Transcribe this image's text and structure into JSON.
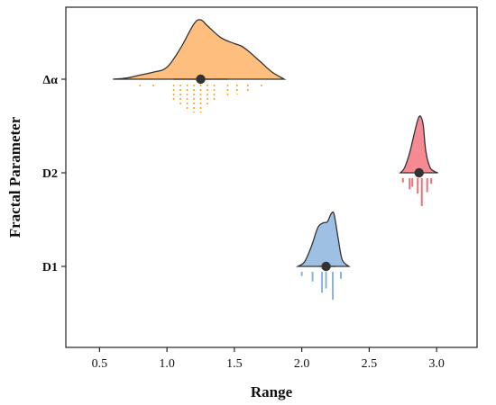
{
  "chart_data": {
    "type": "raincloud",
    "xlabel": "Range",
    "ylabel": "Fractal Parameter",
    "xlim": [
      0.25,
      3.3
    ],
    "x_ticks": [
      0.5,
      1.0,
      1.5,
      2.0,
      2.5,
      3.0
    ],
    "x_tick_labels": [
      "0.5",
      "1.0",
      "1.5",
      "2.0",
      "2.5",
      "3.0"
    ],
    "grid": false,
    "legend": "none",
    "categories": [
      "Δα",
      "D2",
      "D1"
    ],
    "series": [
      {
        "category": "Δα",
        "color": "#FDBE7E",
        "rug_color": "#F5A623",
        "mean": 1.25,
        "interval": [
          1.05,
          1.45
        ],
        "range": [
          0.6,
          1.87
        ],
        "density": [
          [
            0.6,
            0.0
          ],
          [
            0.7,
            0.02
          ],
          [
            0.8,
            0.07
          ],
          [
            0.9,
            0.12
          ],
          [
            1.0,
            0.2
          ],
          [
            1.1,
            0.52
          ],
          [
            1.2,
            0.93
          ],
          [
            1.25,
            1.0
          ],
          [
            1.3,
            0.9
          ],
          [
            1.4,
            0.7
          ],
          [
            1.5,
            0.6
          ],
          [
            1.55,
            0.56
          ],
          [
            1.6,
            0.48
          ],
          [
            1.7,
            0.28
          ],
          [
            1.78,
            0.12
          ],
          [
            1.87,
            0.0
          ]
        ],
        "rug": [
          [
            0.8,
            0.15
          ],
          [
            0.9,
            0.15
          ],
          [
            1.05,
            0.55
          ],
          [
            1.1,
            0.8
          ],
          [
            1.15,
            0.9
          ],
          [
            1.2,
            1.0
          ],
          [
            1.25,
            1.0
          ],
          [
            1.3,
            0.8
          ],
          [
            1.35,
            0.65
          ],
          [
            1.45,
            0.45
          ],
          [
            1.52,
            0.35
          ],
          [
            1.6,
            0.3
          ],
          [
            1.7,
            0.15
          ]
        ]
      },
      {
        "category": "D2",
        "color": "#F58A92",
        "rug_color": "#E76F79",
        "mean": 2.87,
        "interval": [
          2.84,
          2.9
        ],
        "range": [
          2.73,
          3.01
        ],
        "density": [
          [
            2.73,
            0.0
          ],
          [
            2.76,
            0.08
          ],
          [
            2.8,
            0.35
          ],
          [
            2.83,
            0.65
          ],
          [
            2.86,
            0.93
          ],
          [
            2.88,
            1.0
          ],
          [
            2.9,
            0.85
          ],
          [
            2.92,
            0.38
          ],
          [
            2.95,
            0.1
          ],
          [
            2.98,
            0.03
          ],
          [
            3.01,
            0.0
          ]
        ],
        "rug": [
          [
            2.75,
            0.15
          ],
          [
            2.8,
            0.4
          ],
          [
            2.82,
            0.3
          ],
          [
            2.86,
            0.55
          ],
          [
            2.89,
            1.0
          ],
          [
            2.93,
            0.5
          ],
          [
            2.96,
            0.2
          ]
        ]
      },
      {
        "category": "D1",
        "color": "#9EC0E3",
        "rug_color": "#8BB2DC",
        "mean": 2.18,
        "interval": [
          2.13,
          2.25
        ],
        "range": [
          1.97,
          2.35
        ],
        "density": [
          [
            1.97,
            0.0
          ],
          [
            2.02,
            0.08
          ],
          [
            2.07,
            0.35
          ],
          [
            2.12,
            0.7
          ],
          [
            2.16,
            0.78
          ],
          [
            2.19,
            0.8
          ],
          [
            2.22,
            0.95
          ],
          [
            2.24,
            0.93
          ],
          [
            2.27,
            0.5
          ],
          [
            2.3,
            0.12
          ],
          [
            2.35,
            0.0
          ]
        ],
        "rug": [
          [
            2.0,
            0.15
          ],
          [
            2.08,
            0.35
          ],
          [
            2.15,
            0.75
          ],
          [
            2.18,
            0.6
          ],
          [
            2.23,
            1.0
          ],
          [
            2.29,
            0.25
          ]
        ]
      }
    ]
  }
}
